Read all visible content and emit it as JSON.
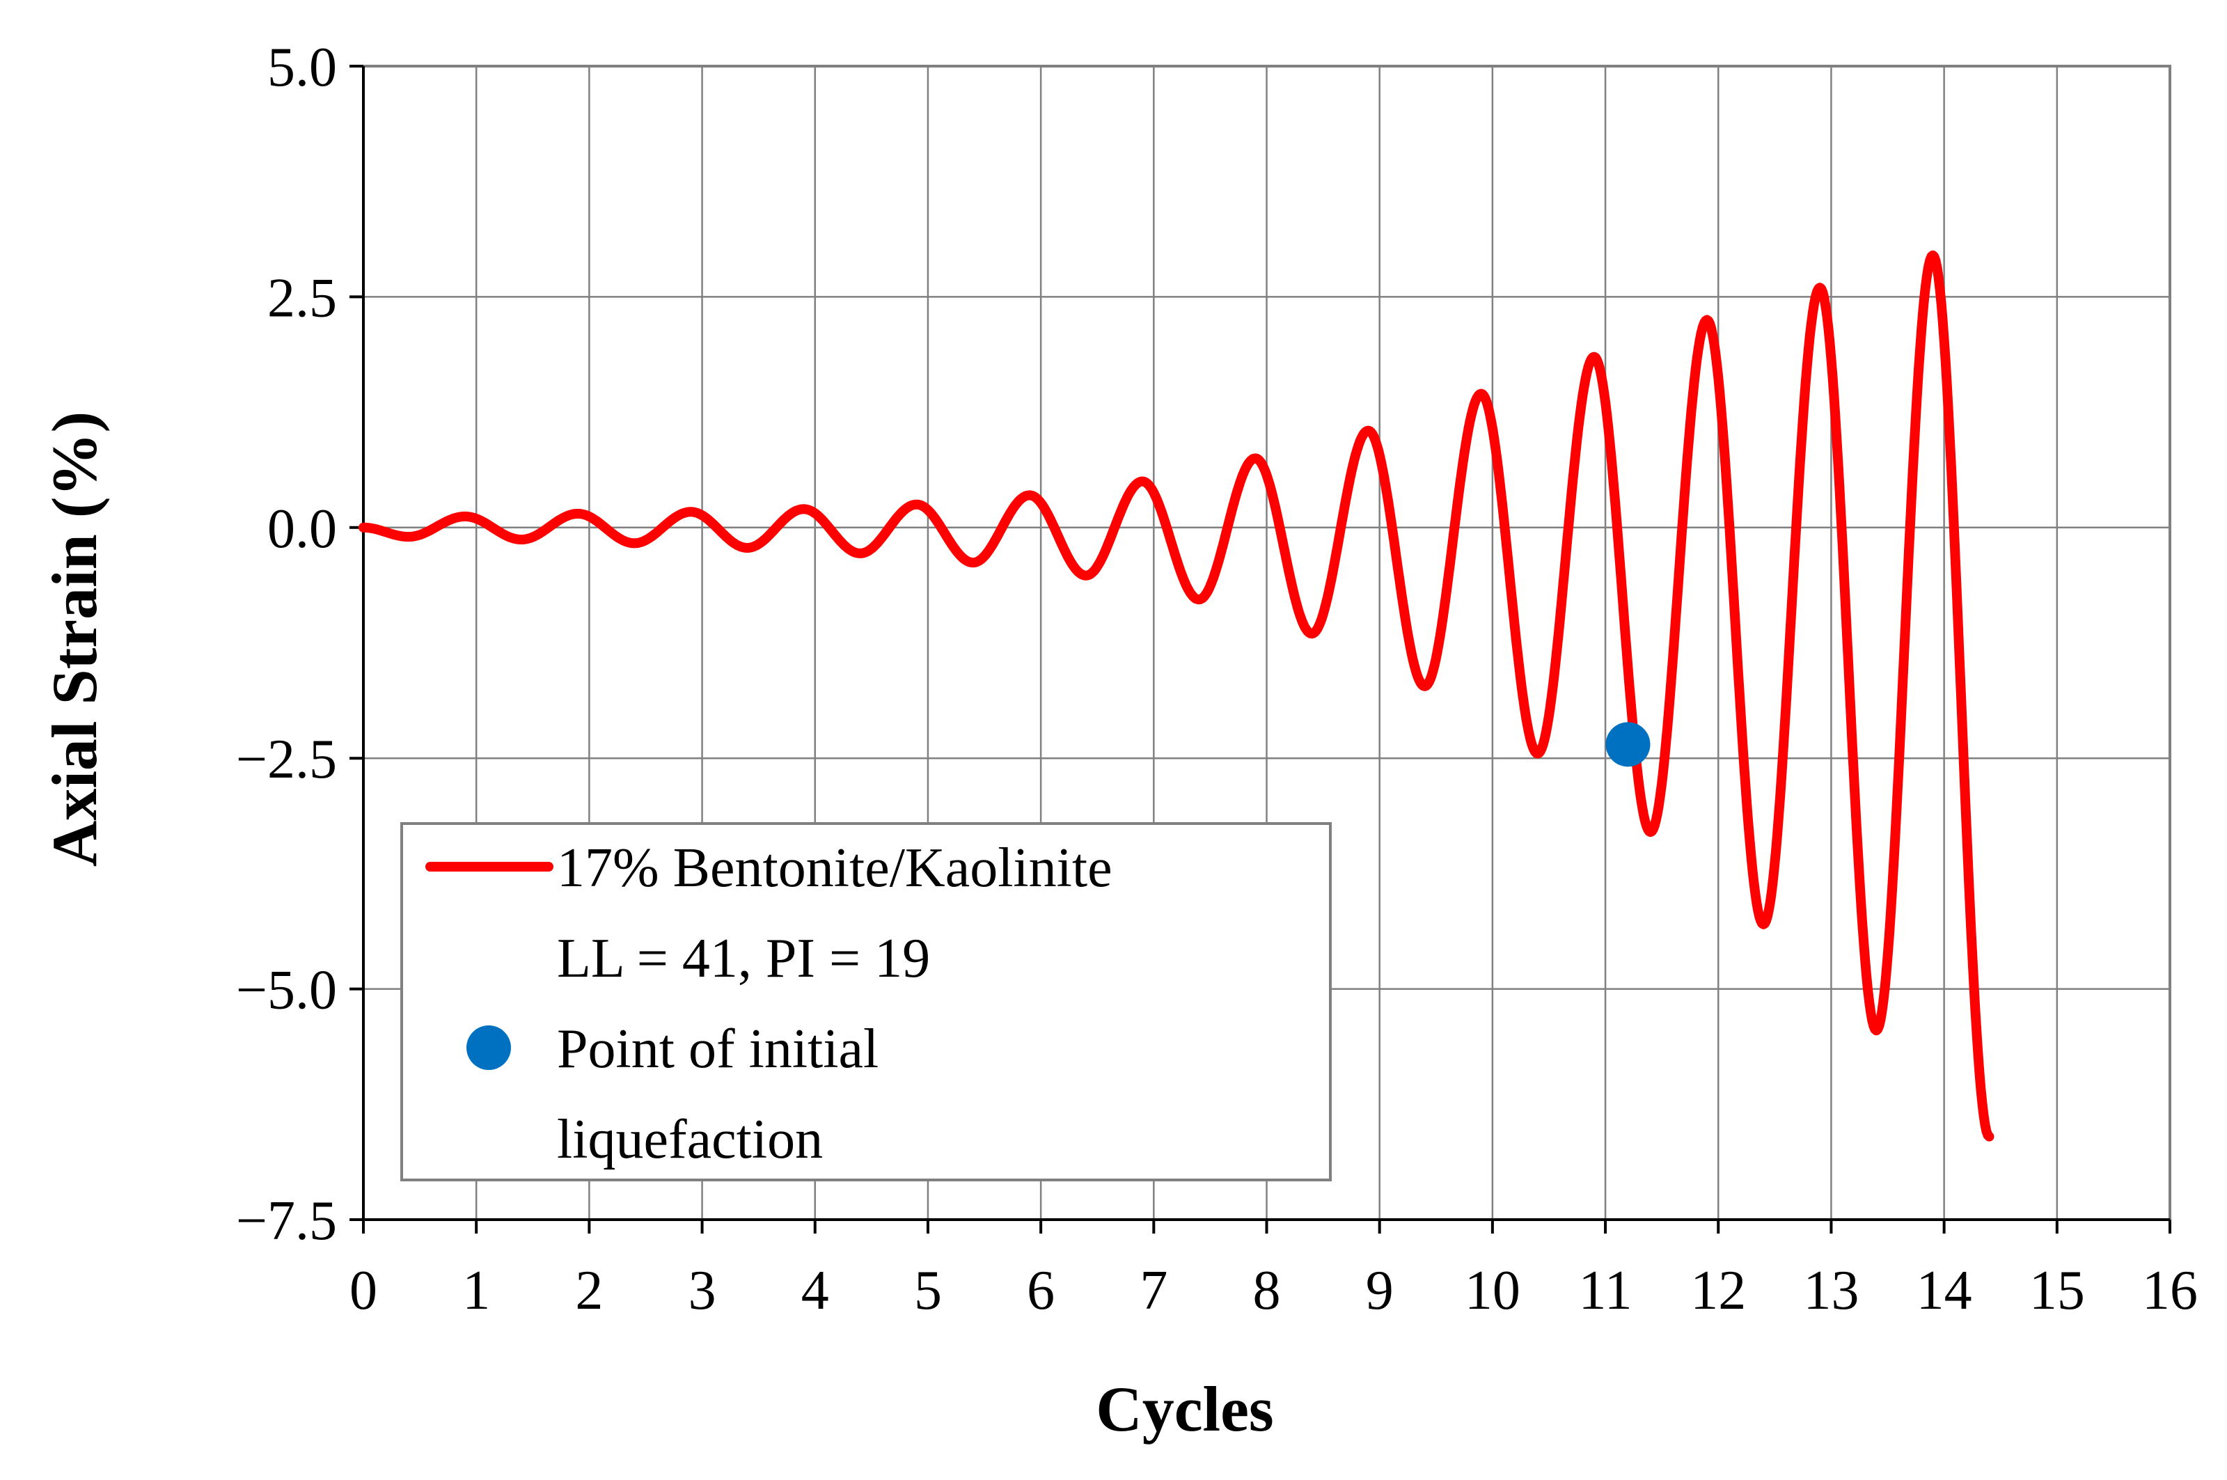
{
  "chart_data": {
    "type": "line",
    "title": "",
    "xlabel": "Cycles",
    "ylabel": "Axial Strain (%)",
    "xlim": [
      0,
      16
    ],
    "ylim": [
      -7.5,
      5.0
    ],
    "x_ticks": [
      0,
      1,
      2,
      3,
      4,
      5,
      6,
      7,
      8,
      9,
      10,
      11,
      12,
      13,
      14,
      15,
      16
    ],
    "x_tick_labels": [
      "0",
      "1",
      "2",
      "3",
      "4",
      "5",
      "6",
      "7",
      "8",
      "9",
      "10",
      "11",
      "12",
      "13",
      "14",
      "15",
      "16"
    ],
    "y_ticks": [
      5.0,
      2.5,
      0.0,
      -2.5,
      -5.0,
      -7.5
    ],
    "y_tick_labels": [
      "5.0",
      "2.5",
      "0.0",
      "−2.5",
      "−5.0",
      "−7.5"
    ],
    "grid": true,
    "series": [
      {
        "name": "17% Bentonite/Kaolinite",
        "name_line2": "LL = 41, PI = 19",
        "color": "#ff0000",
        "peaks": [
          {
            "x": 0.0,
            "y": 0.0
          },
          {
            "x": 0.9,
            "y": 0.12
          },
          {
            "x": 1.9,
            "y": 0.15
          },
          {
            "x": 2.9,
            "y": 0.17
          },
          {
            "x": 3.9,
            "y": 0.2
          },
          {
            "x": 4.9,
            "y": 0.25
          },
          {
            "x": 5.9,
            "y": 0.35
          },
          {
            "x": 6.9,
            "y": 0.5
          },
          {
            "x": 7.9,
            "y": 0.75
          },
          {
            "x": 8.9,
            "y": 1.05
          },
          {
            "x": 9.9,
            "y": 1.45
          },
          {
            "x": 10.9,
            "y": 1.85
          },
          {
            "x": 11.9,
            "y": 2.25
          },
          {
            "x": 12.9,
            "y": 2.6
          },
          {
            "x": 13.9,
            "y": 2.95
          }
        ],
        "troughs": [
          {
            "x": 0.4,
            "y": -0.1
          },
          {
            "x": 1.4,
            "y": -0.13
          },
          {
            "x": 2.4,
            "y": -0.17
          },
          {
            "x": 3.4,
            "y": -0.22
          },
          {
            "x": 4.4,
            "y": -0.28
          },
          {
            "x": 5.4,
            "y": -0.38
          },
          {
            "x": 6.4,
            "y": -0.52
          },
          {
            "x": 7.4,
            "y": -0.78
          },
          {
            "x": 8.4,
            "y": -1.15
          },
          {
            "x": 9.4,
            "y": -1.72
          },
          {
            "x": 10.4,
            "y": -2.45
          },
          {
            "x": 11.4,
            "y": -3.3
          },
          {
            "x": 12.4,
            "y": -4.3
          },
          {
            "x": 13.4,
            "y": -5.45
          }
        ],
        "end": {
          "x": 14.4,
          "y": -6.6
        }
      },
      {
        "name": "Point of initial",
        "name_line2": "liquefaction",
        "type": "scatter",
        "color": "#0070c0",
        "points": [
          {
            "x": 11.2,
            "y": -2.35
          }
        ]
      }
    ],
    "legend": {
      "position": "bottom-left",
      "entries": [
        {
          "label": "17% Bentonite/Kaolinite",
          "label_line2": "LL = 41, PI = 19",
          "marker": "line",
          "color": "#ff0000"
        },
        {
          "label": "Point of initial",
          "label_line2": "liquefaction",
          "marker": "dot",
          "color": "#0070c0"
        }
      ]
    }
  }
}
